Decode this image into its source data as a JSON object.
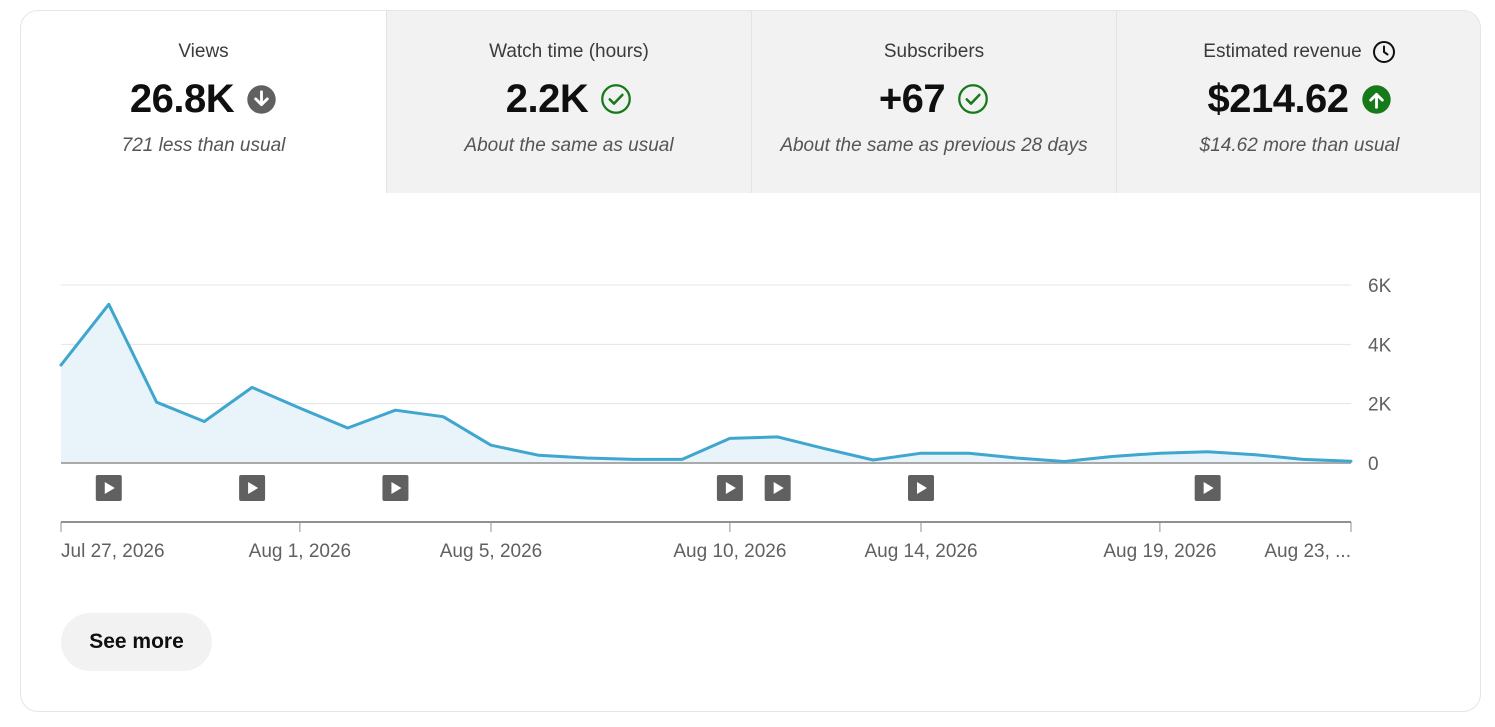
{
  "metrics": [
    {
      "title": "Views",
      "value": "26.8K",
      "note": "721 less than usual",
      "status_icon": "arrow-down-circle-icon"
    },
    {
      "title": "Watch time (hours)",
      "value": "2.2K",
      "note": "About the same as usual",
      "status_icon": "check-circle-icon"
    },
    {
      "title": "Subscribers",
      "value": "+67",
      "note": "About the same as previous 28 days",
      "status_icon": "check-circle-icon"
    },
    {
      "title": "Estimated revenue",
      "value": "$214.62",
      "note": "$14.62 more than usual",
      "status_icon": "arrow-up-circle-icon",
      "title_icon": "clock-icon"
    }
  ],
  "colors": {
    "line": "#3ea6cf",
    "area": "#e8f4fa",
    "good": "#167a1a",
    "neutral_down": "#606060"
  },
  "chart_data": {
    "type": "area",
    "series": [
      {
        "name": "Views"
      }
    ],
    "x": [
      "Jul 27, 2026",
      "Jul 28, 2026",
      "Jul 29, 2026",
      "Jul 30, 2026",
      "Jul 31, 2026",
      "Aug 1, 2026",
      "Aug 2, 2026",
      "Aug 3, 2026",
      "Aug 4, 2026",
      "Aug 5, 2026",
      "Aug 6, 2026",
      "Aug 7, 2026",
      "Aug 8, 2026",
      "Aug 9, 2026",
      "Aug 10, 2026",
      "Aug 11, 2026",
      "Aug 12, 2026",
      "Aug 13, 2026",
      "Aug 14, 2026",
      "Aug 15, 2026",
      "Aug 16, 2026",
      "Aug 17, 2026",
      "Aug 18, 2026",
      "Aug 19, 2026",
      "Aug 20, 2026",
      "Aug 21, 2026",
      "Aug 22, 2026",
      "Aug 23, 2026"
    ],
    "values": [
      3300,
      5350,
      2050,
      1400,
      2550,
      1850,
      1180,
      1780,
      1560,
      600,
      260,
      170,
      120,
      120,
      830,
      880,
      480,
      100,
      330,
      330,
      170,
      50,
      220,
      330,
      380,
      280,
      120,
      60
    ],
    "ylim": [
      0,
      6000
    ],
    "y_ticks": [
      0,
      2000,
      4000,
      6000
    ],
    "y_tick_labels": [
      "0",
      "2K",
      "4K",
      "6K"
    ],
    "x_tick_labels": [
      {
        "date": "Jul 27, 2026",
        "label": "Jul 27, 2026"
      },
      {
        "date": "Aug 1, 2026",
        "label": "Aug 1, 2026"
      },
      {
        "date": "Aug 5, 2026",
        "label": "Aug 5, 2026"
      },
      {
        "date": "Aug 10, 2026",
        "label": "Aug 10, 2026"
      },
      {
        "date": "Aug 14, 2026",
        "label": "Aug 14, 2026"
      },
      {
        "date": "Aug 19, 2026",
        "label": "Aug 19, 2026"
      },
      {
        "date": "Aug 23, 2026",
        "label": "Aug 23, ..."
      }
    ],
    "video_markers": [
      "Jul 28, 2026",
      "Jul 31, 2026",
      "Aug 3, 2026",
      "Aug 10, 2026",
      "Aug 11, 2026",
      "Aug 14, 2026",
      "Aug 20, 2026"
    ],
    "grid": true,
    "legend": "none"
  },
  "actions": {
    "see_more": "See more"
  }
}
